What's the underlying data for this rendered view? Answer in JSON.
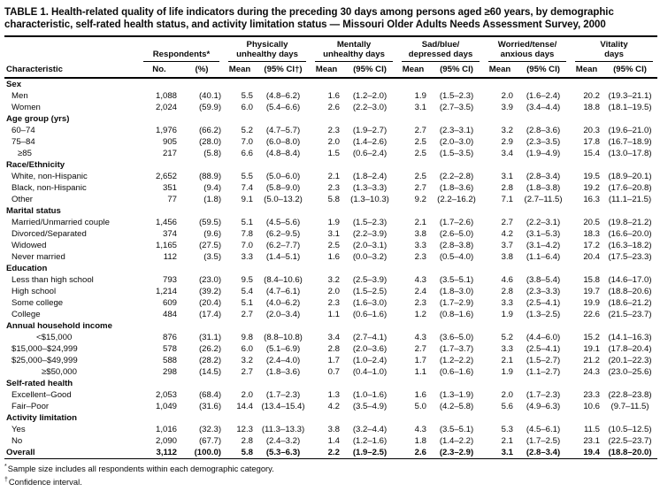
{
  "title": "TABLE 1. Health-related quality of life indicators during the preceding 30 days among persons aged ≥60 years, by demographic characteristic, self-rated health status, and activity limitation status — Missouri Older Adults Needs Assessment Survey, 2000",
  "table": {
    "characteristic_header": "Characteristic",
    "groups": [
      {
        "label": "Respondents*",
        "sub": [
          "No.",
          "(%)"
        ]
      },
      {
        "label": "Physically\nunhealthy days",
        "sub": [
          "Mean",
          "(95% CI†)"
        ]
      },
      {
        "label": "Mentally\nunhealthy days",
        "sub": [
          "Mean",
          "(95% CI)"
        ]
      },
      {
        "label": "Sad/blue/\ndepressed days",
        "sub": [
          "Mean",
          "(95% CI)"
        ]
      },
      {
        "label": "Worried/tense/\nanxious days",
        "sub": [
          "Mean",
          "(95% CI)"
        ]
      },
      {
        "label": "Vitality\ndays",
        "sub": [
          "Mean",
          "(95% CI)"
        ]
      }
    ],
    "rows": [
      {
        "type": "section",
        "label": "Sex"
      },
      {
        "type": "data",
        "label": "Men",
        "indent": 1,
        "values": [
          "1,088",
          "(40.1)",
          "5.5",
          "(4.8–6.2)",
          "1.6",
          "(1.2–2.0)",
          "1.9",
          "(1.5–2.3)",
          "2.0",
          "(1.6–2.4)",
          "20.2",
          "(19.3–21.1)"
        ]
      },
      {
        "type": "data",
        "label": "Women",
        "indent": 1,
        "values": [
          "2,024",
          "(59.9)",
          "6.0",
          "(5.4–6.6)",
          "2.6",
          "(2.2–3.0)",
          "3.1",
          "(2.7–3.5)",
          "3.9",
          "(3.4–4.4)",
          "18.8",
          "(18.1–19.5)"
        ]
      },
      {
        "type": "section",
        "label": "Age group (yrs)"
      },
      {
        "type": "data",
        "label": "60–74",
        "indent": 1,
        "values": [
          "1,976",
          "(66.2)",
          "5.2",
          "(4.7–5.7)",
          "2.3",
          "(1.9–2.7)",
          "2.7",
          "(2.3–3.1)",
          "3.2",
          "(2.8–3.6)",
          "20.3",
          "(19.6–21.0)"
        ]
      },
      {
        "type": "data",
        "label": "75–84",
        "indent": 1,
        "values": [
          "905",
          "(28.0)",
          "7.0",
          "(6.0–8.0)",
          "2.0",
          "(1.4–2.6)",
          "2.5",
          "(2.0–3.0)",
          "2.9",
          "(2.3–3.5)",
          "17.8",
          "(16.7–18.9)"
        ]
      },
      {
        "type": "data",
        "label": "≥85",
        "indent": 2,
        "values": [
          "217",
          "(5.8)",
          "6.6",
          "(4.8–8.4)",
          "1.5",
          "(0.6–2.4)",
          "2.5",
          "(1.5–3.5)",
          "3.4",
          "(1.9–4.9)",
          "15.4",
          "(13.0–17.8)"
        ]
      },
      {
        "type": "section",
        "label": "Race/Ethnicity"
      },
      {
        "type": "data",
        "label": "White, non-Hispanic",
        "indent": 1,
        "values": [
          "2,652",
          "(88.9)",
          "5.5",
          "(5.0–6.0)",
          "2.1",
          "(1.8–2.4)",
          "2.5",
          "(2.2–2.8)",
          "3.1",
          "(2.8–3.4)",
          "19.5",
          "(18.9–20.1)"
        ]
      },
      {
        "type": "data",
        "label": "Black, non-Hispanic",
        "indent": 1,
        "values": [
          "351",
          "(9.4)",
          "7.4",
          "(5.8–9.0)",
          "2.3",
          "(1.3–3.3)",
          "2.7",
          "(1.8–3.6)",
          "2.8",
          "(1.8–3.8)",
          "19.2",
          "(17.6–20.8)"
        ]
      },
      {
        "type": "data",
        "label": "Other",
        "indent": 1,
        "values": [
          "77",
          "(1.8)",
          "9.1",
          "(5.0–13.2)",
          "5.8",
          "(1.3–10.3)",
          "9.2",
          "(2.2–16.2)",
          "7.1",
          "(2.7–11.5)",
          "16.3",
          "(11.1–21.5)"
        ]
      },
      {
        "type": "section",
        "label": "Marital status"
      },
      {
        "type": "data",
        "label": "Married/Unmarried couple",
        "indent": 1,
        "values": [
          "1,456",
          "(59.5)",
          "5.1",
          "(4.5–5.6)",
          "1.9",
          "(1.5–2.3)",
          "2.1",
          "(1.7–2.6)",
          "2.7",
          "(2.2–3.1)",
          "20.5",
          "(19.8–21.2)"
        ]
      },
      {
        "type": "data",
        "label": "Divorced/Separated",
        "indent": 1,
        "values": [
          "374",
          "(9.6)",
          "7.8",
          "(6.2–9.5)",
          "3.1",
          "(2.2–3.9)",
          "3.8",
          "(2.6–5.0)",
          "4.2",
          "(3.1–5.3)",
          "18.3",
          "(16.6–20.0)"
        ]
      },
      {
        "type": "data",
        "label": "Widowed",
        "indent": 1,
        "values": [
          "1,165",
          "(27.5)",
          "7.0",
          "(6.2–7.7)",
          "2.5",
          "(2.0–3.1)",
          "3.3",
          "(2.8–3.8)",
          "3.7",
          "(3.1–4.2)",
          "17.2",
          "(16.3–18.2)"
        ]
      },
      {
        "type": "data",
        "label": "Never married",
        "indent": 1,
        "values": [
          "112",
          "(3.5)",
          "3.3",
          "(1.4–5.1)",
          "1.6",
          "(0.0–3.2)",
          "2.3",
          "(0.5–4.0)",
          "3.8",
          "(1.1–6.4)",
          "20.4",
          "(17.5–23.3)"
        ]
      },
      {
        "type": "section",
        "label": "Education"
      },
      {
        "type": "data",
        "label": "Less than high school",
        "indent": 1,
        "values": [
          "793",
          "(23.0)",
          "9.5",
          "(8.4–10.6)",
          "3.2",
          "(2.5–3.9)",
          "4.3",
          "(3.5–5.1)",
          "4.6",
          "(3.8–5.4)",
          "15.8",
          "(14.6–17.0)"
        ]
      },
      {
        "type": "data",
        "label": "High school",
        "indent": 1,
        "values": [
          "1,214",
          "(39.2)",
          "5.4",
          "(4.7–6.1)",
          "2.0",
          "(1.5–2.5)",
          "2.4",
          "(1.8–3.0)",
          "2.8",
          "(2.3–3.3)",
          "19.7",
          "(18.8–20.6)"
        ]
      },
      {
        "type": "data",
        "label": "Some college",
        "indent": 1,
        "values": [
          "609",
          "(20.4)",
          "5.1",
          "(4.0–6.2)",
          "2.3",
          "(1.6–3.0)",
          "2.3",
          "(1.7–2.9)",
          "3.3",
          "(2.5–4.1)",
          "19.9",
          "(18.6–21.2)"
        ]
      },
      {
        "type": "data",
        "label": "College",
        "indent": 1,
        "values": [
          "484",
          "(17.4)",
          "2.7",
          "(2.0–3.4)",
          "1.1",
          "(0.6–1.6)",
          "1.2",
          "(0.8–1.6)",
          "1.9",
          "(1.3–2.5)",
          "22.6",
          "(21.5–23.7)"
        ]
      },
      {
        "type": "section",
        "label": "Annual household income"
      },
      {
        "type": "data",
        "label": "<$15,000",
        "indent": 3,
        "values": [
          "876",
          "(31.1)",
          "9.8",
          "(8.8–10.8)",
          "3.4",
          "(2.7–4.1)",
          "4.3",
          "(3.6–5.0)",
          "5.2",
          "(4.4–6.0)",
          "15.2",
          "(14.1–16.3)"
        ]
      },
      {
        "type": "data",
        "label": "$15,000–$24,999",
        "indent": 1,
        "values": [
          "578",
          "(26.2)",
          "6.0",
          "(5.1–6.9)",
          "2.8",
          "(2.0–3.6)",
          "2.7",
          "(1.7–3.7)",
          "3.3",
          "(2.5–4.1)",
          "19.1",
          "(17.8–20.4)"
        ]
      },
      {
        "type": "data",
        "label": "$25,000–$49,999",
        "indent": 1,
        "values": [
          "588",
          "(28.2)",
          "3.2",
          "(2.4–4.0)",
          "1.7",
          "(1.0–2.4)",
          "1.7",
          "(1.2–2.2)",
          "2.1",
          "(1.5–2.7)",
          "21.2",
          "(20.1–22.3)"
        ]
      },
      {
        "type": "data",
        "label": "≥$50,000",
        "indent": 4,
        "values": [
          "298",
          "(14.5)",
          "2.7",
          "(1.8–3.6)",
          "0.7",
          "(0.4–1.0)",
          "1.1",
          "(0.6–1.6)",
          "1.9",
          "(1.1–2.7)",
          "24.3",
          "(23.0–25.6)"
        ]
      },
      {
        "type": "section",
        "label": "Self-rated health"
      },
      {
        "type": "data",
        "label": "Excellent–Good",
        "indent": 1,
        "values": [
          "2,053",
          "(68.4)",
          "2.0",
          "(1.7–2.3)",
          "1.3",
          "(1.0–1.6)",
          "1.6",
          "(1.3–1.9)",
          "2.0",
          "(1.7–2.3)",
          "23.3",
          "(22.8–23.8)"
        ]
      },
      {
        "type": "data",
        "label": "Fair–Poor",
        "indent": 1,
        "values": [
          "1,049",
          "(31.6)",
          "14.4",
          "(13.4–15.4)",
          "4.2",
          "(3.5–4.9)",
          "5.0",
          "(4.2–5.8)",
          "5.6",
          "(4.9–6.3)",
          "10.6",
          "(9.7–11.5)"
        ]
      },
      {
        "type": "section",
        "label": "Activity limitation"
      },
      {
        "type": "data",
        "label": "Yes",
        "indent": 1,
        "values": [
          "1,016",
          "(32.3)",
          "12.3",
          "(11.3–13.3)",
          "3.8",
          "(3.2–4.4)",
          "4.3",
          "(3.5–5.1)",
          "5.3",
          "(4.5–6.1)",
          "11.5",
          "(10.5–12.5)"
        ]
      },
      {
        "type": "data",
        "label": "No",
        "indent": 1,
        "values": [
          "2,090",
          "(67.7)",
          "2.8",
          "(2.4–3.2)",
          "1.4",
          "(1.2–1.6)",
          "1.8",
          "(1.4–2.2)",
          "2.1",
          "(1.7–2.5)",
          "23.1",
          "(22.5–23.7)"
        ]
      },
      {
        "type": "data",
        "label": "Overall",
        "indent": 0,
        "overall": true,
        "values": [
          "3,112",
          "(100.0)",
          "5.8",
          "(5.3–6.3)",
          "2.2",
          "(1.9–2.5)",
          "2.6",
          "(2.3–2.9)",
          "3.1",
          "(2.8–3.4)",
          "19.4",
          "(18.8–20.0)"
        ]
      }
    ]
  },
  "footnotes": [
    {
      "marker": "*",
      "text": "Sample size includes all respondents within each demographic category."
    },
    {
      "marker": "†",
      "text": "Confidence interval."
    }
  ]
}
